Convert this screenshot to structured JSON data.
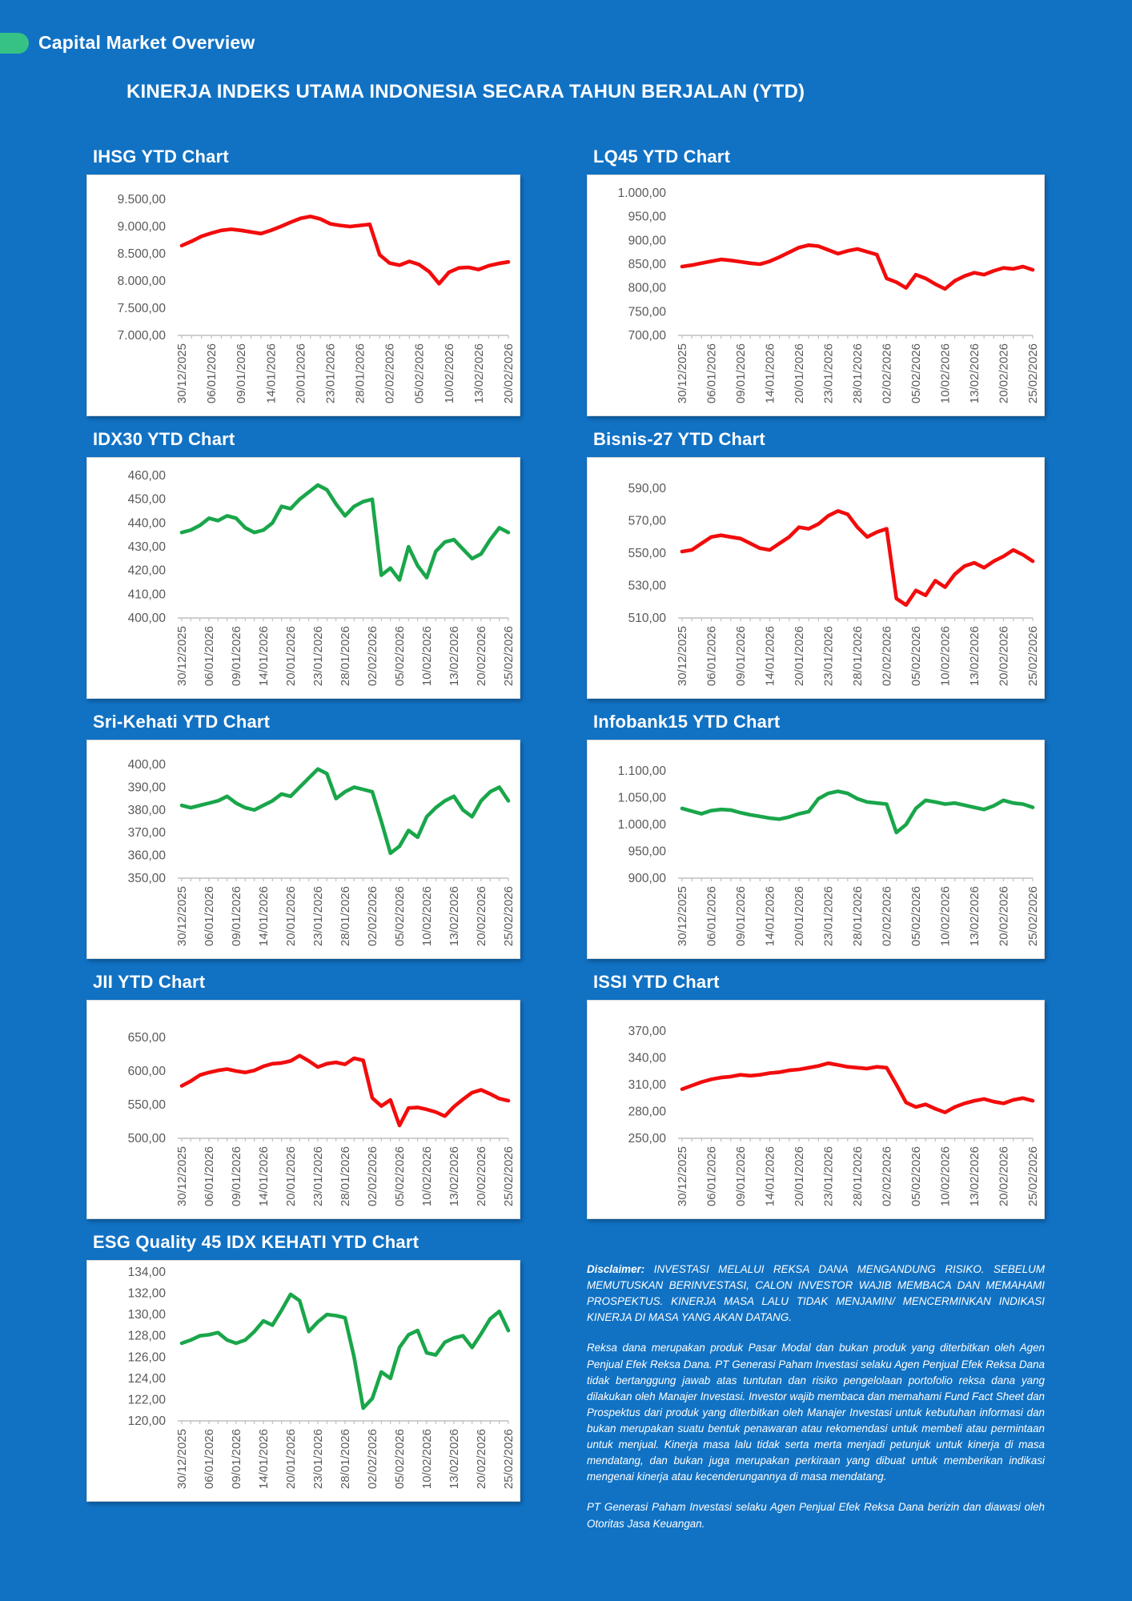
{
  "header": {
    "title": "Capital Market Overview"
  },
  "main_title": "KINERJA INDEKS UTAMA INDONESIA SECARA TAHUN BERJALAN (YTD)",
  "colors": {
    "background": "#1172c4",
    "accent_green": "#35c284",
    "line_red": "#f20c0c",
    "line_green": "#19a64a",
    "axis_text": "#595959",
    "axis_line": "#bfbfbf",
    "card_bg": "#ffffff"
  },
  "chart_data": [
    {
      "type": "line",
      "title": "IHSG YTD Chart",
      "color": "red",
      "y_labels": [
        "9.500,00",
        "9.000,00",
        "8.500,00",
        "8.000,00",
        "7.500,00",
        "7.000,00"
      ],
      "y_min": 7000,
      "y_max": 9500,
      "grid": "off",
      "legend": "none",
      "x_labels": [
        "30/12/2025",
        "06/01/2026",
        "09/01/2026",
        "14/01/2026",
        "20/01/2026",
        "23/01/2026",
        "28/01/2026",
        "02/02/2026",
        "05/02/2026",
        "10/02/2026",
        "13/02/2026",
        "20/02/2026"
      ],
      "values": [
        8650,
        8730,
        8820,
        8880,
        8930,
        8950,
        8930,
        8900,
        8870,
        8930,
        9000,
        9080,
        9150,
        9185,
        9140,
        9050,
        9020,
        9000,
        9020,
        9040,
        8480,
        8330,
        8290,
        8360,
        8300,
        8170,
        7950,
        8160,
        8240,
        8250,
        8210,
        8280,
        8320,
        8350
      ]
    },
    {
      "type": "line",
      "title": "LQ45 YTD Chart",
      "color": "red",
      "y_labels": [
        "1.000,00",
        "950,00",
        "900,00",
        "850,00",
        "800,00",
        "750,00",
        "700,00"
      ],
      "y_min": 700,
      "y_max": 1000,
      "grid": "off",
      "legend": "none",
      "x_labels": [
        "30/12/2025",
        "06/01/2026",
        "09/01/2026",
        "14/01/2026",
        "20/01/2026",
        "23/01/2026",
        "28/01/2026",
        "02/02/2026",
        "05/02/2026",
        "10/02/2026",
        "13/02/2026",
        "20/02/2026",
        "25/02/2026"
      ],
      "values": [
        845,
        848,
        852,
        856,
        860,
        858,
        855,
        852,
        850,
        856,
        865,
        875,
        885,
        890,
        888,
        880,
        872,
        878,
        882,
        876,
        870,
        820,
        812,
        800,
        828,
        820,
        808,
        798,
        815,
        825,
        832,
        828,
        836,
        842,
        840,
        845,
        838
      ]
    },
    {
      "type": "line",
      "title": "IDX30 YTD Chart",
      "color": "green",
      "y_labels": [
        "460,00",
        "450,00",
        "440,00",
        "430,00",
        "420,00",
        "410,00",
        "400,00"
      ],
      "y_min": 400,
      "y_max": 460,
      "grid": "off",
      "legend": "none",
      "x_labels": [
        "30/12/2025",
        "06/01/2026",
        "09/01/2026",
        "14/01/2026",
        "20/01/2026",
        "23/01/2026",
        "28/01/2026",
        "02/02/2026",
        "05/02/2026",
        "10/02/2026",
        "13/02/2026",
        "20/02/2026",
        "25/02/2026"
      ],
      "values": [
        436,
        437,
        439,
        442,
        441,
        443,
        442,
        438,
        436,
        437,
        440,
        447,
        446,
        450,
        453,
        456,
        454,
        448,
        443,
        447,
        449,
        450,
        418,
        421,
        416,
        430,
        422,
        417,
        428,
        432,
        433,
        429,
        425,
        427,
        433,
        438,
        436
      ]
    },
    {
      "type": "line",
      "title": "Bisnis-27 YTD Chart",
      "color": "red",
      "y_labels": [
        "590,00",
        "570,00",
        "550,00",
        "530,00",
        "510,00"
      ],
      "y_min": 510,
      "y_max": 590,
      "grid": "off",
      "legend": "none",
      "x_labels": [
        "30/12/2025",
        "06/01/2026",
        "09/01/2026",
        "14/01/2026",
        "20/01/2026",
        "23/01/2026",
        "28/01/2026",
        "02/02/2026",
        "05/02/2026",
        "10/02/2026",
        "13/02/2026",
        "20/02/2026",
        "25/02/2026"
      ],
      "values": [
        551,
        552,
        556,
        560,
        561,
        560,
        559,
        556,
        553,
        552,
        556,
        560,
        566,
        565,
        568,
        573,
        576,
        574,
        566,
        560,
        563,
        565,
        522,
        518,
        527,
        524,
        533,
        529,
        537,
        542,
        544,
        541,
        545,
        548,
        552,
        549,
        545
      ]
    },
    {
      "type": "line",
      "title": "Sri-Kehati YTD Chart",
      "color": "green",
      "y_labels": [
        "400,00",
        "390,00",
        "380,00",
        "370,00",
        "360,00",
        "350,00"
      ],
      "y_min": 350,
      "y_max": 400,
      "grid": "off",
      "legend": "none",
      "x_labels": [
        "30/12/2025",
        "06/01/2026",
        "09/01/2026",
        "14/01/2026",
        "20/01/2026",
        "23/01/2026",
        "28/01/2026",
        "02/02/2026",
        "05/02/2026",
        "10/02/2026",
        "13/02/2026",
        "20/02/2026",
        "25/02/2026"
      ],
      "values": [
        382,
        381,
        382,
        383,
        384,
        386,
        383,
        381,
        380,
        382,
        384,
        387,
        386,
        390,
        394,
        398,
        396,
        385,
        388,
        390,
        389,
        388,
        375,
        361,
        364,
        371,
        368,
        377,
        381,
        384,
        386,
        380,
        377,
        384,
        388,
        390,
        384
      ]
    },
    {
      "type": "line",
      "title": "Infobank15 YTD Chart",
      "color": "green",
      "y_labels": [
        "1.100,00",
        "1.050,00",
        "1.000,00",
        "950,00",
        "900,00"
      ],
      "y_min": 900,
      "y_max": 1100,
      "grid": "off",
      "legend": "none",
      "x_labels": [
        "30/12/2025",
        "06/01/2026",
        "09/01/2026",
        "14/01/2026",
        "20/01/2026",
        "23/01/2026",
        "28/01/2026",
        "02/02/2026",
        "05/02/2026",
        "10/02/2026",
        "13/02/2026",
        "20/02/2026",
        "25/02/2026"
      ],
      "values": [
        1030,
        1025,
        1020,
        1026,
        1028,
        1027,
        1022,
        1018,
        1015,
        1012,
        1010,
        1014,
        1020,
        1024,
        1048,
        1058,
        1062,
        1058,
        1048,
        1042,
        1040,
        1038,
        985,
        1000,
        1030,
        1045,
        1042,
        1038,
        1040,
        1036,
        1032,
        1028,
        1035,
        1045,
        1040,
        1038,
        1032
      ]
    },
    {
      "type": "line",
      "title": "JII YTD Chart",
      "color": "red",
      "y_labels": [
        "650,00",
        "600,00",
        "550,00",
        "500,00"
      ],
      "y_min": 500,
      "y_max": 650,
      "grid": "off",
      "legend": "none",
      "x_labels": [
        "30/12/2025",
        "06/01/2026",
        "09/01/2026",
        "14/01/2026",
        "20/01/2026",
        "23/01/2026",
        "28/01/2026",
        "02/02/2026",
        "05/02/2026",
        "10/02/2026",
        "13/02/2026",
        "20/02/2026",
        "25/02/2026"
      ],
      "values": [
        578,
        585,
        594,
        598,
        601,
        603,
        600,
        598,
        601,
        607,
        611,
        612,
        615,
        623,
        615,
        606,
        611,
        613,
        610,
        619,
        616,
        560,
        548,
        557,
        519,
        545,
        546,
        543,
        539,
        533,
        547,
        558,
        568,
        572,
        566,
        559,
        556
      ]
    },
    {
      "type": "line",
      "title": "ISSI YTD Chart",
      "color": "red",
      "y_labels": [
        "370,00",
        "340,00",
        "310,00",
        "280,00",
        "250,00"
      ],
      "y_min": 250,
      "y_max": 370,
      "grid": "off",
      "legend": "none",
      "x_labels": [
        "30/12/2025",
        "06/01/2026",
        "09/01/2026",
        "14/01/2026",
        "20/01/2026",
        "23/01/2026",
        "28/01/2026",
        "02/02/2026",
        "05/02/2026",
        "10/02/2026",
        "13/02/2026",
        "20/02/2026",
        "25/02/2026"
      ],
      "values": [
        305,
        309,
        313,
        316,
        318,
        319,
        321,
        320,
        321,
        323,
        324,
        326,
        327,
        329,
        331,
        334,
        332,
        330,
        329,
        328,
        330,
        329,
        310,
        290,
        285,
        288,
        283,
        279,
        285,
        289,
        292,
        294,
        291,
        289,
        293,
        295,
        292
      ]
    },
    {
      "type": "line",
      "title": "ESG Quality 45 IDX KEHATI YTD Chart",
      "color": "green",
      "y_labels": [
        "134,00",
        "132,00",
        "130,00",
        "128,00",
        "126,00",
        "124,00",
        "122,00",
        "120,00"
      ],
      "y_min": 120,
      "y_max": 134,
      "grid": "off",
      "legend": "none",
      "x_labels": [
        "30/12/2025",
        "06/01/2026",
        "09/01/2026",
        "14/01/2026",
        "20/01/2026",
        "23/01/2026",
        "28/01/2026",
        "02/02/2026",
        "05/02/2026",
        "10/02/2026",
        "13/02/2026",
        "20/02/2026",
        "25/02/2026"
      ],
      "values": [
        127.3,
        127.6,
        128.0,
        128.1,
        128.3,
        127.6,
        127.3,
        127.6,
        128.4,
        129.4,
        129.0,
        130.4,
        131.9,
        131.3,
        128.4,
        129.3,
        130.0,
        129.9,
        129.7,
        126.0,
        121.2,
        122.1,
        124.6,
        124.0,
        126.9,
        128.1,
        128.5,
        126.4,
        126.2,
        127.4,
        127.8,
        128.0,
        126.9,
        128.2,
        129.6,
        130.3,
        128.5
      ]
    }
  ],
  "disclaimer": {
    "lead": "Disclaimer:",
    "p1": "INVESTASI MELALUI REKSA DANA MENGANDUNG RISIKO. SEBELUM MEMUTUSKAN BERINVESTASI, CALON INVESTOR WAJIB MEMBACA DAN MEMAHAMI PROSPEKTUS. KINERJA MASA LALU TIDAK MENJAMIN/ MENCERMINKAN INDIKASI KINERJA DI MASA YANG AKAN DATANG.",
    "p2": "Reksa dana merupakan produk Pasar Modal dan bukan produk yang diterbitkan oleh Agen Penjual Efek Reksa Dana. PT Generasi Paham Investasi selaku Agen Penjual Efek Reksa Dana tidak bertanggung jawab atas tuntutan dan risiko pengelolaan portofolio reksa dana yang dilakukan oleh Manajer Investasi. Investor wajib membaca dan memahami Fund Fact Sheet dan Prospektus dari produk yang diterbitkan oleh Manajer Investasi untuk kebutuhan informasi dan bukan merupakan suatu bentuk penawaran atau rekomendasi untuk membeli atau permintaan untuk menjual. Kinerja masa lalu tidak serta merta menjadi petunjuk untuk kinerja di masa mendatang, dan bukan juga merupakan perkiraan yang dibuat untuk memberikan indikasi mengenai kinerja atau kecenderungannya di masa mendatang.",
    "p3": "PT Generasi Paham Investasi selaku Agen Penjual Efek Reksa Dana berizin dan diawasi oleh Otoritas Jasa Keuangan."
  }
}
